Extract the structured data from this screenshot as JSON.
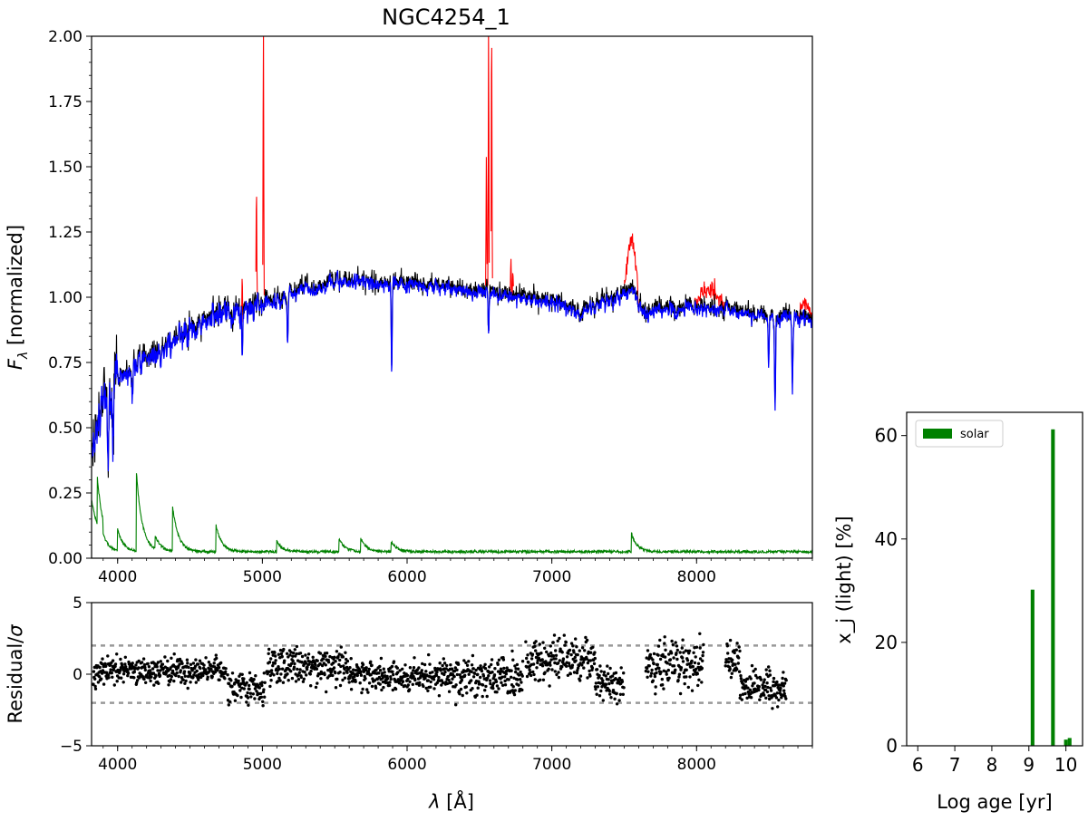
{
  "figure_title": "NGC4254_1",
  "colors": {
    "observed": "#000000",
    "model": "#0000ff",
    "masked": "#ff0000",
    "error": "#008000",
    "residual": "#000000",
    "sigma_lines": "#999999",
    "bars": "#008000"
  },
  "chart_data": [
    {
      "type": "line",
      "id": "spectrum",
      "title": "NGC4254_1",
      "xlabel": "",
      "ylabel_main": "F",
      "ylabel_sub": "λ",
      "ylabel_rest": " [normalized]",
      "xlim": [
        3820,
        8800
      ],
      "ylim": [
        0,
        2.0
      ],
      "x_ticks": [
        "4000",
        "5000",
        "6000",
        "7000",
        "8000"
      ],
      "y_ticks": [
        "0.00",
        "0.25",
        "0.50",
        "0.75",
        "1.00",
        "1.25",
        "1.50",
        "1.75",
        "2.00"
      ],
      "continuum_knots": {
        "x": [
          3820,
          3900,
          4000,
          4200,
          4500,
          4700,
          5000,
          5300,
          5600,
          5800,
          6000,
          6300,
          6500,
          6800,
          7000,
          7200,
          7400,
          7550,
          7650,
          7800,
          8000,
          8200,
          8400,
          8600,
          8800
        ],
        "y": [
          0.45,
          0.58,
          0.68,
          0.77,
          0.86,
          0.93,
          0.97,
          1.03,
          1.06,
          1.05,
          1.05,
          1.03,
          1.02,
          0.99,
          0.98,
          0.94,
          0.98,
          1.02,
          0.94,
          0.95,
          0.96,
          0.95,
          0.93,
          0.92,
          0.91
        ]
      },
      "absorption_lines": [
        {
          "x": 3934,
          "depth": 0.35
        },
        {
          "x": 3968,
          "depth": 0.3
        },
        {
          "x": 4102,
          "depth": 0.12
        },
        {
          "x": 4300,
          "depth": 0.1
        },
        {
          "x": 4861,
          "depth": 0.18
        },
        {
          "x": 5175,
          "depth": 0.2
        },
        {
          "x": 5893,
          "depth": 0.35
        },
        {
          "x": 6563,
          "depth": 0.15
        },
        {
          "x": 8498,
          "depth": 0.2
        },
        {
          "x": 8542,
          "depth": 0.35
        },
        {
          "x": 8662,
          "depth": 0.3
        }
      ],
      "emission_lines": [
        {
          "x": 4861,
          "peak": 1.1
        },
        {
          "x": 4959,
          "peak": 1.43
        },
        {
          "x": 5007,
          "peak": 2.05
        },
        {
          "x": 6300,
          "peak": 1.05
        },
        {
          "x": 6548,
          "peak": 1.55
        },
        {
          "x": 6563,
          "peak": 2.05
        },
        {
          "x": 6584,
          "peak": 2.05
        },
        {
          "x": 6717,
          "peak": 1.15
        },
        {
          "x": 6731,
          "peak": 1.1
        }
      ],
      "masked_bumps": [
        {
          "x0": 7500,
          "x1": 7600,
          "peak": 1.22
        },
        {
          "x0": 7980,
          "x1": 8200,
          "peak": 1.03
        },
        {
          "x0": 8700,
          "x1": 8800,
          "peak": 0.96
        }
      ],
      "error_spectrum": {
        "baseline": 0.02,
        "jumps": [
          {
            "x": 3860,
            "h": 0.18
          },
          {
            "x": 4000,
            "h": 0.08
          },
          {
            "x": 4130,
            "h": 0.3
          },
          {
            "x": 4260,
            "h": 0.05
          },
          {
            "x": 4380,
            "h": 0.17
          },
          {
            "x": 4680,
            "h": 0.1
          },
          {
            "x": 5100,
            "h": 0.04
          },
          {
            "x": 5530,
            "h": 0.05
          },
          {
            "x": 5680,
            "h": 0.05
          },
          {
            "x": 5890,
            "h": 0.04
          },
          {
            "x": 7550,
            "h": 0.07
          }
        ]
      }
    },
    {
      "type": "scatter",
      "id": "residual",
      "xlabel": "λ [Å]",
      "xlabel_sym": "λ",
      "xlabel_rest": " [Å]",
      "ylabel": "Residual/σ",
      "ylabel_main": "Residual/",
      "ylabel_sym": "σ",
      "xlim": [
        3820,
        8800
      ],
      "ylim": [
        -5,
        5
      ],
      "x_ticks": [
        "4000",
        "5000",
        "6000",
        "7000",
        "8000"
      ],
      "y_ticks": [
        "−5",
        "0",
        "5"
      ],
      "threshold_lines": [
        2,
        -2
      ],
      "segments": [
        {
          "x0": 3830,
          "x1": 4750,
          "mean": 0.2,
          "spread": 1.0
        },
        {
          "x0": 4760,
          "x1": 5020,
          "mean": -1.0,
          "spread": 1.2
        },
        {
          "x0": 5030,
          "x1": 5600,
          "mean": 0.6,
          "spread": 1.3
        },
        {
          "x0": 5600,
          "x1": 6300,
          "mean": -0.1,
          "spread": 1.2
        },
        {
          "x0": 6300,
          "x1": 6800,
          "mean": -0.2,
          "spread": 1.6
        },
        {
          "x0": 6820,
          "x1": 7300,
          "mean": 1.0,
          "spread": 1.6
        },
        {
          "x0": 7300,
          "x1": 7500,
          "mean": -0.6,
          "spread": 1.4
        },
        {
          "x0": 7650,
          "x1": 8050,
          "mean": 0.6,
          "spread": 1.9
        },
        {
          "x0": 8200,
          "x1": 8300,
          "mean": 0.8,
          "spread": 1.6
        },
        {
          "x0": 8300,
          "x1": 8620,
          "mean": -1.0,
          "spread": 1.3
        }
      ]
    },
    {
      "type": "bar",
      "id": "sfh",
      "xlabel": "Log age [yr]",
      "ylabel": "x_j (light) [%]",
      "xlim": [
        5.7,
        10.45
      ],
      "ylim": [
        0,
        64.5
      ],
      "x_ticks": [
        "6",
        "7",
        "8",
        "9",
        "10"
      ],
      "y_ticks": [
        "0",
        "20",
        "40",
        "60"
      ],
      "legend": [
        "solar"
      ],
      "legend_position": "top-left",
      "series": [
        {
          "name": "solar",
          "x": [
            9.1,
            9.65,
            10.0,
            10.1
          ],
          "values": [
            30.2,
            61.2,
            1.2,
            1.5
          ]
        }
      ]
    }
  ]
}
